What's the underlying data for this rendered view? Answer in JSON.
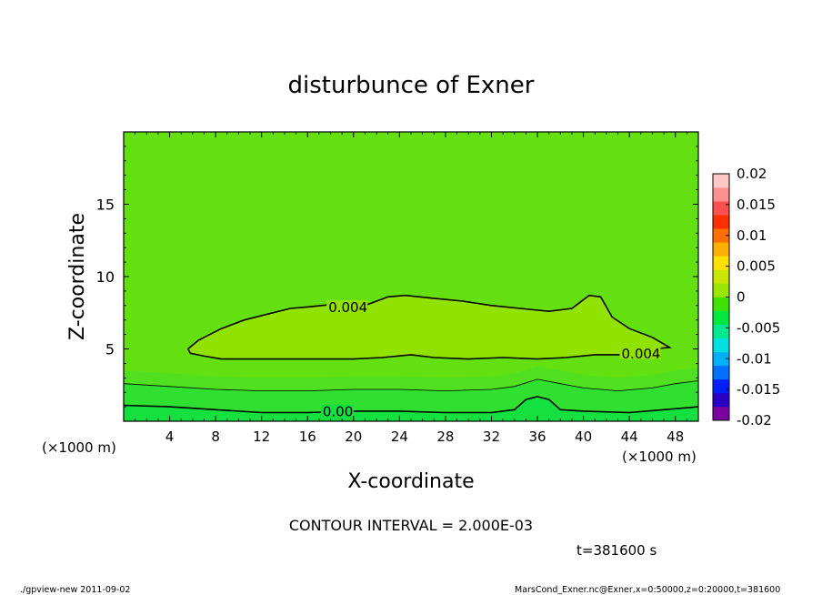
{
  "chart_data": {
    "type": "heatmap",
    "title": "disturbunce of Exner",
    "xlabel": "X-coordinate",
    "ylabel": "Z-coordinate",
    "x_unit": "(×1000 m)",
    "x_unit_right": "(×1000 m)",
    "z_unit": "(×1000 m)",
    "xlim": [
      0,
      50
    ],
    "ylim": [
      0,
      20
    ],
    "x_ticks": [
      "4",
      "8",
      "12",
      "16",
      "20",
      "24",
      "28",
      "32",
      "36",
      "40",
      "44",
      "48"
    ],
    "y_ticks": [
      "5",
      "10",
      "15"
    ],
    "colorbar": {
      "ticks": [
        "0.02",
        "0.015",
        "0.01",
        "0.005",
        "0",
        "-0.005",
        "-0.01",
        "-0.015",
        "-0.02"
      ],
      "range": [
        -0.02,
        0.02
      ],
      "colors": [
        "#7a00a0",
        "#2a00c8",
        "#0020ff",
        "#0070ff",
        "#00b0ff",
        "#00e0e0",
        "#00e890",
        "#00e840",
        "#40e000",
        "#9ae600",
        "#c8e600",
        "#ffe000",
        "#ffb000",
        "#ff7000",
        "#ff3000",
        "#ff5050",
        "#ff9090",
        "#ffc8c8"
      ]
    },
    "contour_interval": "CONTOUR INTERVAL = 2.000E-03",
    "contours": [
      {
        "label": "0.004",
        "level": 0.004,
        "points": [
          [
            5.6,
            5.0
          ],
          [
            6.5,
            5.6
          ],
          [
            8.5,
            6.4
          ],
          [
            10.5,
            7.0
          ],
          [
            12.5,
            7.4
          ],
          [
            14.5,
            7.8
          ],
          [
            16.0,
            7.9
          ],
          [
            18.5,
            8.1
          ],
          [
            21.0,
            8.0
          ],
          [
            23.0,
            8.6
          ],
          [
            24.5,
            8.7
          ],
          [
            27.0,
            8.5
          ],
          [
            29.5,
            8.3
          ],
          [
            32.0,
            8.0
          ],
          [
            34.5,
            7.8
          ],
          [
            37.0,
            7.6
          ],
          [
            39.0,
            7.8
          ],
          [
            40.5,
            8.7
          ],
          [
            41.5,
            8.6
          ],
          [
            42.5,
            7.2
          ],
          [
            44.0,
            6.4
          ],
          [
            46.0,
            5.8
          ],
          [
            47.5,
            5.1
          ],
          [
            46.0,
            5.0
          ],
          [
            43.5,
            4.6
          ],
          [
            41.0,
            4.6
          ],
          [
            38.5,
            4.4
          ],
          [
            36.0,
            4.3
          ],
          [
            33.0,
            4.4
          ],
          [
            30.0,
            4.3
          ],
          [
            27.0,
            4.4
          ],
          [
            25.0,
            4.6
          ],
          [
            22.5,
            4.4
          ],
          [
            20.0,
            4.3
          ],
          [
            17.0,
            4.3
          ],
          [
            14.0,
            4.3
          ],
          [
            11.0,
            4.3
          ],
          [
            8.5,
            4.3
          ],
          [
            7.0,
            4.5
          ],
          [
            5.8,
            4.7
          ],
          [
            5.6,
            5.0
          ]
        ]
      },
      {
        "label": "",
        "level": 0.002,
        "points": [
          [
            0,
            2.6
          ],
          [
            4,
            2.4
          ],
          [
            8,
            2.2
          ],
          [
            12,
            2.1
          ],
          [
            16,
            2.1
          ],
          [
            20,
            2.2
          ],
          [
            24,
            2.2
          ],
          [
            28,
            2.1
          ],
          [
            32,
            2.2
          ],
          [
            34,
            2.4
          ],
          [
            36,
            2.9
          ],
          [
            38,
            2.6
          ],
          [
            40,
            2.3
          ],
          [
            43,
            2.1
          ],
          [
            46,
            2.3
          ],
          [
            48,
            2.6
          ],
          [
            50,
            2.8
          ]
        ]
      },
      {
        "label": "0.00",
        "level": 0.0,
        "points": [
          [
            0,
            1.1
          ],
          [
            4,
            1.0
          ],
          [
            8,
            0.8
          ],
          [
            12,
            0.6
          ],
          [
            16,
            0.6
          ],
          [
            20,
            0.7
          ],
          [
            24,
            0.7
          ],
          [
            28,
            0.6
          ],
          [
            32,
            0.6
          ],
          [
            34,
            0.8
          ],
          [
            35,
            1.5
          ],
          [
            36,
            1.7
          ],
          [
            37,
            1.5
          ],
          [
            38,
            0.8
          ],
          [
            40,
            0.7
          ],
          [
            44,
            0.6
          ],
          [
            47,
            0.8
          ],
          [
            50,
            1.0
          ]
        ]
      }
    ]
  },
  "time_label": "t=381600 s",
  "footer": {
    "left": "./gpview-new  2011-09-02",
    "right": "MarsCond_Exner.nc@Exner,x=0:50000,z=0:20000,t=381600"
  },
  "colors": {
    "field_top": "#64e010",
    "field_mid": "#7ee400",
    "blob": "#92e200",
    "band1": "#50e020",
    "band2": "#30e030",
    "band3": "#14e040"
  }
}
